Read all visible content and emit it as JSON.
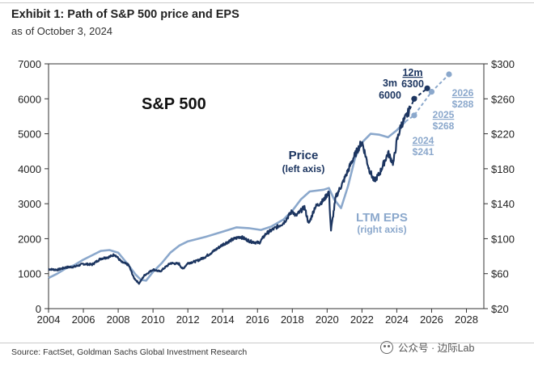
{
  "header": {
    "title": "Exhibit 1: Path of S&P 500 price and EPS",
    "subtitle": "as of October 3, 2024"
  },
  "footer": {
    "source": "Source: FactSet, Goldman Sachs Global Investment Research",
    "watermark": "公众号 · 边际Lab"
  },
  "colors": {
    "price": "#1c3560",
    "eps": "#8ba8cc",
    "forecast_dark": "#1c3560",
    "forecast_light": "#8ba8cc"
  },
  "chart_data": {
    "type": "line",
    "title": "S&P 500",
    "xlabel": "",
    "ylabel": "",
    "xlim": [
      2004,
      2029
    ],
    "ylim": [
      0,
      7000
    ],
    "y2lim": [
      20,
      300
    ],
    "grid": false,
    "x_ticks": [
      "2004",
      "2006",
      "2008",
      "2010",
      "2012",
      "2014",
      "2016",
      "2018",
      "2020",
      "2022",
      "2024",
      "2026",
      "2028"
    ],
    "y_ticks": [
      "0",
      "1000",
      "2000",
      "3000",
      "4000",
      "5000",
      "6000",
      "7000"
    ],
    "y2_ticks": [
      "$20",
      "$60",
      "$100",
      "$140",
      "$180",
      "$220",
      "$260",
      "$300"
    ],
    "series": [
      {
        "name": "Price",
        "label_line1": "Price",
        "label_line2": "(left axis)",
        "axis": "left",
        "points": [
          [
            2004.0,
            1130
          ],
          [
            2004.5,
            1110
          ],
          [
            2005.0,
            1180
          ],
          [
            2005.5,
            1200
          ],
          [
            2006.0,
            1280
          ],
          [
            2006.5,
            1260
          ],
          [
            2007.0,
            1430
          ],
          [
            2007.5,
            1480
          ],
          [
            2007.8,
            1550
          ],
          [
            2008.2,
            1330
          ],
          [
            2008.6,
            1250
          ],
          [
            2008.9,
            880
          ],
          [
            2009.2,
            720
          ],
          [
            2009.5,
            950
          ],
          [
            2010.0,
            1120
          ],
          [
            2010.4,
            1060
          ],
          [
            2011.0,
            1300
          ],
          [
            2011.5,
            1280
          ],
          [
            2011.7,
            1130
          ],
          [
            2012.0,
            1300
          ],
          [
            2012.5,
            1360
          ],
          [
            2013.0,
            1480
          ],
          [
            2013.5,
            1650
          ],
          [
            2014.0,
            1830
          ],
          [
            2014.5,
            1960
          ],
          [
            2015.0,
            2060
          ],
          [
            2015.6,
            1920
          ],
          [
            2016.1,
            1880
          ],
          [
            2016.5,
            2150
          ],
          [
            2017.0,
            2300
          ],
          [
            2017.5,
            2450
          ],
          [
            2018.0,
            2800
          ],
          [
            2018.2,
            2650
          ],
          [
            2018.7,
            2900
          ],
          [
            2018.95,
            2420
          ],
          [
            2019.3,
            2900
          ],
          [
            2019.8,
            3100
          ],
          [
            2020.1,
            3350
          ],
          [
            2020.22,
            2240
          ],
          [
            2020.5,
            3200
          ],
          [
            2020.9,
            3600
          ],
          [
            2021.5,
            4300
          ],
          [
            2022.0,
            4780
          ],
          [
            2022.4,
            4000
          ],
          [
            2022.7,
            3650
          ],
          [
            2023.0,
            3850
          ],
          [
            2023.5,
            4450
          ],
          [
            2023.8,
            4150
          ],
          [
            2024.0,
            4780
          ],
          [
            2024.25,
            5250
          ],
          [
            2024.5,
            5450
          ],
          [
            2024.75,
            5700
          ]
        ]
      },
      {
        "name": "LTM EPS",
        "label_line1": "LTM EPS",
        "label_line2": "(right axis)",
        "axis": "right",
        "points": [
          [
            2004.0,
            55
          ],
          [
            2004.5,
            60
          ],
          [
            2005.0,
            66
          ],
          [
            2005.5,
            70
          ],
          [
            2006.0,
            76
          ],
          [
            2006.5,
            81
          ],
          [
            2007.0,
            86
          ],
          [
            2007.5,
            87
          ],
          [
            2008.0,
            84
          ],
          [
            2008.5,
            72
          ],
          [
            2009.0,
            59
          ],
          [
            2009.3,
            53
          ],
          [
            2009.6,
            52
          ],
          [
            2010.0,
            62
          ],
          [
            2010.5,
            72
          ],
          [
            2011.0,
            84
          ],
          [
            2011.5,
            92
          ],
          [
            2012.0,
            97
          ],
          [
            2013.0,
            102
          ],
          [
            2014.0,
            108
          ],
          [
            2014.8,
            113
          ],
          [
            2015.5,
            112
          ],
          [
            2016.2,
            110
          ],
          [
            2016.8,
            114
          ],
          [
            2017.5,
            122
          ],
          [
            2018.0,
            132
          ],
          [
            2018.5,
            145
          ],
          [
            2019.0,
            154
          ],
          [
            2019.8,
            156
          ],
          [
            2020.1,
            158
          ],
          [
            2020.4,
            145
          ],
          [
            2020.8,
            135
          ],
          [
            2021.2,
            160
          ],
          [
            2021.6,
            192
          ],
          [
            2022.0,
            210
          ],
          [
            2022.5,
            220
          ],
          [
            2023.0,
            219
          ],
          [
            2023.5,
            216
          ],
          [
            2024.0,
            224
          ],
          [
            2024.5,
            234
          ]
        ]
      }
    ],
    "forecasts": {
      "price": [
        {
          "x": 2024.75,
          "y": 5700,
          "label": ""
        },
        {
          "x": 2025.0,
          "y": 6000,
          "label": "3m",
          "value_label": "6000"
        },
        {
          "x": 2025.75,
          "y": 6300,
          "label": "12m",
          "value_label": "6300"
        }
      ],
      "eps": [
        {
          "x": 2024.5,
          "y": 234,
          "label": ""
        },
        {
          "x": 2025.0,
          "y": 241,
          "label": "2024",
          "value_label": "$241"
        },
        {
          "x": 2026.0,
          "y": 268,
          "label": "2025",
          "value_label": "$268"
        },
        {
          "x": 2027.0,
          "y": 288,
          "label": "2026",
          "value_label": "$288"
        }
      ]
    }
  }
}
